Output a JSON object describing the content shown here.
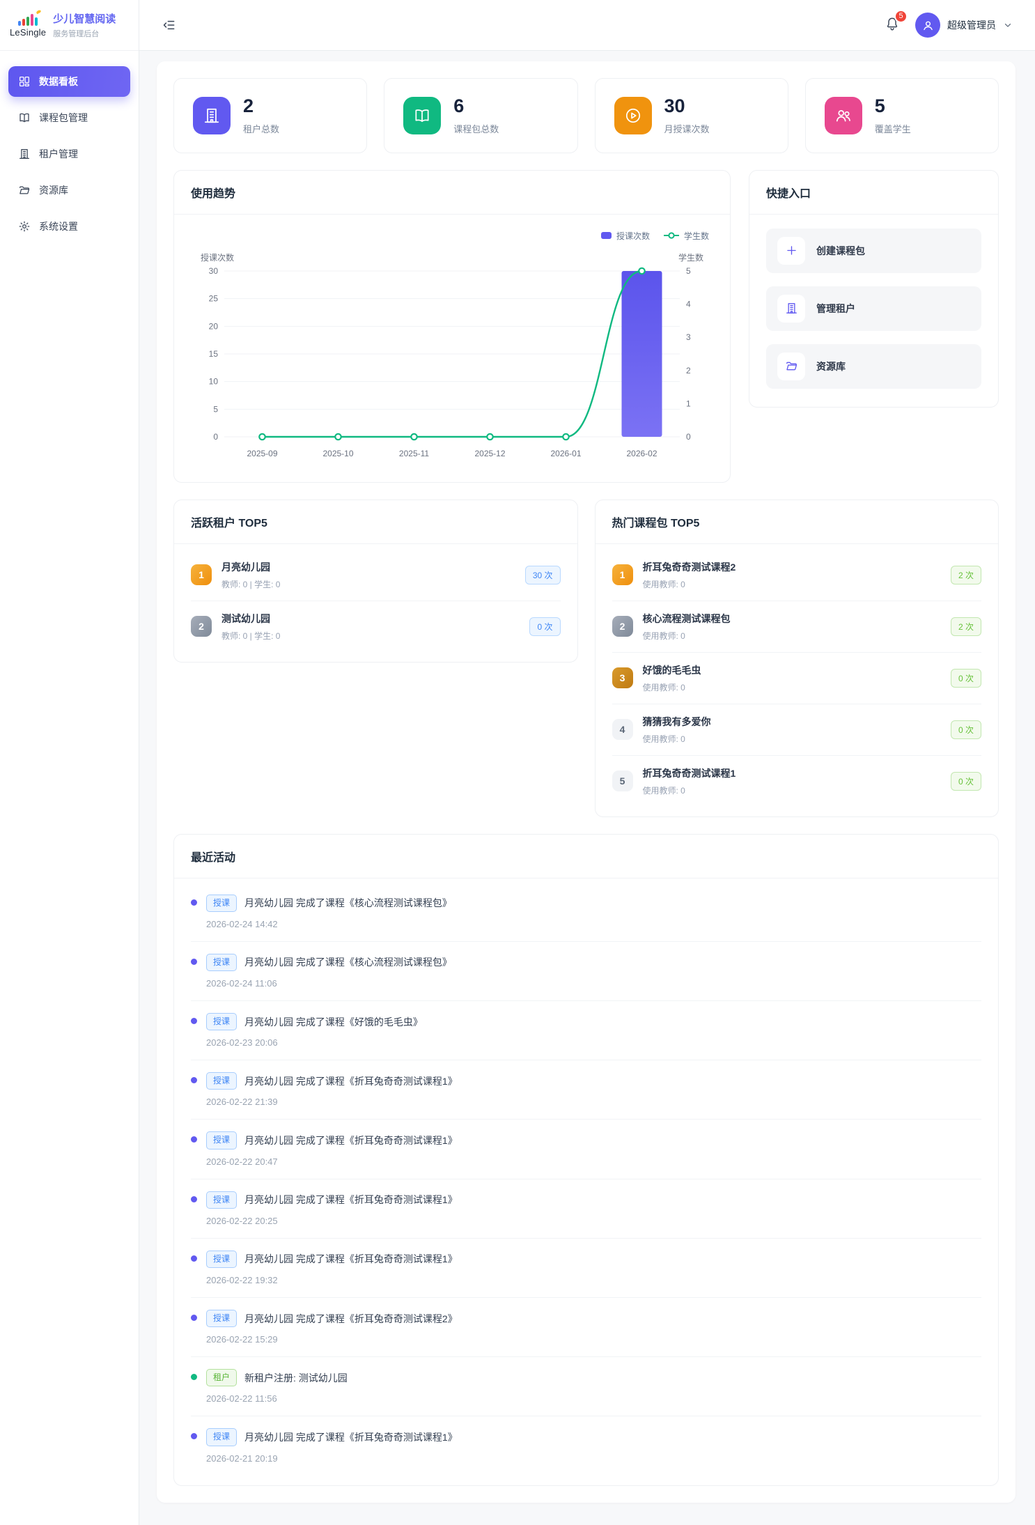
{
  "brand": {
    "logo_text": "LeSingle",
    "title": "少儿智慧阅读",
    "subtitle": "服务管理后台"
  },
  "sidebar": {
    "items": [
      {
        "label": "数据看板",
        "icon": "dashboard-icon",
        "active": true
      },
      {
        "label": "课程包管理",
        "icon": "book-icon",
        "active": false
      },
      {
        "label": "租户管理",
        "icon": "building-icon",
        "active": false
      },
      {
        "label": "资源库",
        "icon": "folder-icon",
        "active": false
      },
      {
        "label": "系统设置",
        "icon": "gear-icon",
        "active": false
      }
    ]
  },
  "topbar": {
    "notification_count": "5",
    "user_name": "超级管理员"
  },
  "stats": [
    {
      "value": "2",
      "label": "租户总数",
      "icon": "building-icon",
      "color": "#6159f0"
    },
    {
      "value": "6",
      "label": "课程包总数",
      "icon": "book-icon",
      "color": "#10b981"
    },
    {
      "value": "30",
      "label": "月授课次数",
      "icon": "play-circle-icon",
      "color": "#f0930e"
    },
    {
      "value": "5",
      "label": "覆盖学生",
      "icon": "people-icon",
      "color": "#e8488f"
    }
  ],
  "usage_trend": {
    "title": "使用趋势",
    "chart_data": {
      "type": "bar",
      "categories": [
        "2025-09",
        "2025-10",
        "2025-11",
        "2025-12",
        "2026-01",
        "2026-02"
      ],
      "series": [
        {
          "name": "授课次数",
          "type": "bar",
          "axis": "left",
          "values": [
            0,
            0,
            0,
            0,
            0,
            30
          ],
          "color": "#6159f0"
        },
        {
          "name": "学生数",
          "type": "line",
          "axis": "right",
          "values": [
            0,
            0,
            0,
            0,
            0,
            5
          ],
          "color": "#10b981"
        }
      ],
      "ylabel_left": "授课次数",
      "ylabel_right": "学生数",
      "y_left": {
        "min": 0,
        "max": 30,
        "step": 5
      },
      "y_right": {
        "min": 0,
        "max": 5,
        "step": 1
      },
      "grid": true,
      "legend_position": "top-right"
    }
  },
  "quick_entry": {
    "title": "快捷入口",
    "items": [
      {
        "label": "创建课程包",
        "icon": "plus-icon"
      },
      {
        "label": "管理租户",
        "icon": "building-icon"
      },
      {
        "label": "资源库",
        "icon": "folder-icon"
      }
    ]
  },
  "active_tenants": {
    "title": "活跃租户 TOP5",
    "badge_color": "blue",
    "items": [
      {
        "rank": "1",
        "name": "月亮幼儿园",
        "meta": "教师: 0 | 学生: 0",
        "count": "30 次"
      },
      {
        "rank": "2",
        "name": "测试幼儿园",
        "meta": "教师: 0 | 学生: 0",
        "count": "0 次"
      }
    ]
  },
  "hot_packages": {
    "title": "热门课程包 TOP5",
    "badge_color": "green",
    "items": [
      {
        "rank": "1",
        "name": "折耳兔奇奇测试课程2",
        "meta": "使用教师: 0",
        "count": "2 次"
      },
      {
        "rank": "2",
        "name": "核心流程测试课程包",
        "meta": "使用教师: 0",
        "count": "2 次"
      },
      {
        "rank": "3",
        "name": "好饿的毛毛虫",
        "meta": "使用教师: 0",
        "count": "0 次"
      },
      {
        "rank": "4",
        "name": "猜猜我有多爱你",
        "meta": "使用教师: 0",
        "count": "0 次"
      },
      {
        "rank": "5",
        "name": "折耳兔奇奇测试课程1",
        "meta": "使用教师: 0",
        "count": "0 次"
      }
    ]
  },
  "recent": {
    "title": "最近活动",
    "items": [
      {
        "tag": "授课",
        "type": "course",
        "text": "月亮幼儿园 完成了课程《核心流程测试课程包》",
        "time": "2026-02-24 14:42"
      },
      {
        "tag": "授课",
        "type": "course",
        "text": "月亮幼儿园 完成了课程《核心流程测试课程包》",
        "time": "2026-02-24 11:06"
      },
      {
        "tag": "授课",
        "type": "course",
        "text": "月亮幼儿园 完成了课程《好饿的毛毛虫》",
        "time": "2026-02-23 20:06"
      },
      {
        "tag": "授课",
        "type": "course",
        "text": "月亮幼儿园 完成了课程《折耳兔奇奇测试课程1》",
        "time": "2026-02-22 21:39"
      },
      {
        "tag": "授课",
        "type": "course",
        "text": "月亮幼儿园 完成了课程《折耳兔奇奇测试课程1》",
        "time": "2026-02-22 20:47"
      },
      {
        "tag": "授课",
        "type": "course",
        "text": "月亮幼儿园 完成了课程《折耳兔奇奇测试课程1》",
        "time": "2026-02-22 20:25"
      },
      {
        "tag": "授课",
        "type": "course",
        "text": "月亮幼儿园 完成了课程《折耳兔奇奇测试课程1》",
        "time": "2026-02-22 19:32"
      },
      {
        "tag": "授课",
        "type": "course",
        "text": "月亮幼儿园 完成了课程《折耳兔奇奇测试课程2》",
        "time": "2026-02-22 15:29"
      },
      {
        "tag": "租户",
        "type": "tenant",
        "text": "新租户注册: 测试幼儿园",
        "time": "2026-02-22 11:56"
      },
      {
        "tag": "授课",
        "type": "course",
        "text": "月亮幼儿园 完成了课程《折耳兔奇奇测试课程1》",
        "time": "2026-02-21 20:19"
      }
    ]
  },
  "colors": {
    "primary": "#6159f0",
    "line_green": "#10b981",
    "dot_course": "#6159f0",
    "dot_tenant": "#10b981",
    "badge_red": "#f04438"
  }
}
